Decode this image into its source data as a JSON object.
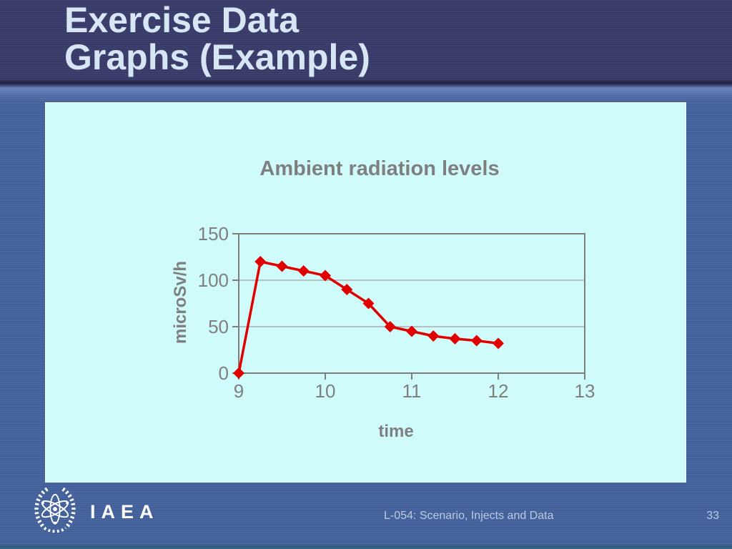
{
  "slide_title": {
    "line1": "Exercise Data",
    "line2": "Graphs (Example)"
  },
  "footer": {
    "label": "L-054: Scenario, Injects and Data",
    "page": "33",
    "logo_text": "IAEA"
  },
  "colors": {
    "header_bg": "#3e4070",
    "body_bg": "#48669f",
    "title_text": "#d8e5f5",
    "chart_box_bg": "#d0fbfb",
    "footer_text": "#bdcbe0"
  },
  "chart_data": {
    "type": "line",
    "title": "Ambient radiation levels",
    "xlabel": "time",
    "ylabel": "microSv/h",
    "x": [
      9,
      9.25,
      9.5,
      9.75,
      10,
      10.25,
      10.5,
      10.75,
      11,
      11.25,
      11.5,
      11.75,
      12
    ],
    "values": [
      0,
      120,
      115,
      110,
      105,
      90,
      75,
      50,
      45,
      40,
      37,
      35,
      32
    ],
    "xlim": [
      9,
      13
    ],
    "ylim": [
      0,
      150
    ],
    "xticks": [
      9,
      10,
      11,
      12,
      13
    ],
    "yticks": [
      0,
      50,
      100,
      150
    ],
    "grid": true,
    "legend": false,
    "marker": "diamond",
    "colors": {
      "series": "#e10000",
      "axis": "#7d7d7d",
      "grid": "#a7b0b0",
      "text": "#7f7f7f"
    }
  }
}
